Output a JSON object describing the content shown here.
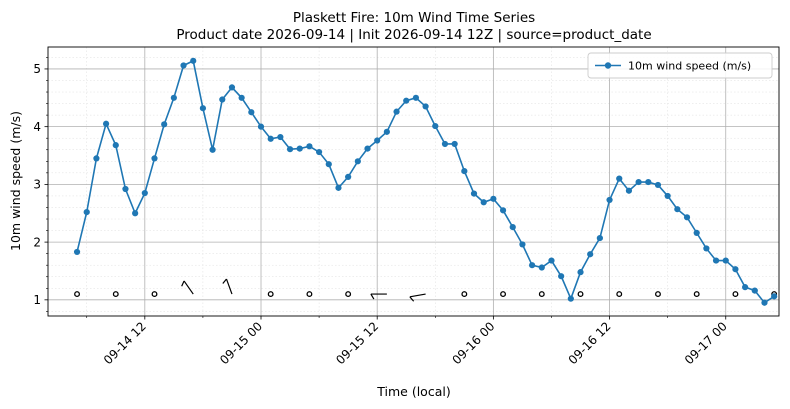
{
  "chart_data": {
    "type": "line",
    "title": "Plaskett Fire: 10m Wind Time Series",
    "subtitle": "Product date 2026-09-14 | Init 2026-09-14 12Z | source=product_date",
    "xlabel": "Time (local)",
    "ylabel": "10m wind speed (m/s)",
    "xlim": [
      "2026-09-14 02:00",
      "2026-09-17 05:30"
    ],
    "ylim": [
      0.72,
      5.38
    ],
    "x_ticks": [
      "09-14 12",
      "09-15 00",
      "09-15 12",
      "09-16 00",
      "09-16 12",
      "09-17 00"
    ],
    "y_ticks": [
      1,
      2,
      3,
      4,
      5
    ],
    "grid": true,
    "minor_grid": true,
    "legend": "top-right",
    "x_start": "2026-09-14 05:00",
    "x_step_hours": 1,
    "series": [
      {
        "name": "10m wind speed (m/s)",
        "color": "#1f77b4",
        "marker": "circle",
        "values": [
          1.83,
          2.52,
          3.45,
          4.05,
          3.68,
          2.92,
          2.5,
          2.85,
          3.45,
          4.04,
          4.5,
          5.06,
          5.14,
          4.32,
          3.6,
          4.47,
          4.68,
          4.5,
          4.25,
          4.0,
          3.79,
          3.82,
          3.61,
          3.62,
          3.66,
          3.56,
          3.35,
          2.94,
          3.13,
          3.4,
          3.62,
          3.76,
          3.91,
          4.26,
          4.45,
          4.5,
          4.35,
          4.01,
          3.7,
          3.7,
          3.23,
          2.84,
          2.69,
          2.75,
          2.55,
          2.26,
          1.96,
          1.6,
          1.56,
          1.68,
          1.41,
          1.02,
          1.48,
          1.79,
          2.07,
          2.73,
          3.1,
          2.89,
          3.04,
          3.04,
          2.99,
          2.8,
          2.57,
          2.43,
          2.16,
          1.89,
          1.68,
          1.68,
          1.53,
          1.22,
          1.16,
          0.95,
          1.06
        ]
      }
    ],
    "wind_barbs": {
      "y": 1.1,
      "color": "#000000",
      "times": [
        "2026-09-14 05:00",
        "2026-09-14 09:00",
        "2026-09-14 13:00",
        "2026-09-14 17:00",
        "2026-09-14 21:00",
        "2026-09-15 01:00",
        "2026-09-15 05:00",
        "2026-09-15 09:00",
        "2026-09-15 13:00",
        "2026-09-15 17:00",
        "2026-09-15 21:00",
        "2026-09-16 01:00",
        "2026-09-16 05:00",
        "2026-09-16 09:00",
        "2026-09-16 13:00",
        "2026-09-16 17:00",
        "2026-09-16 21:00",
        "2026-09-17 01:00",
        "2026-09-17 05:00"
      ],
      "kind": [
        "calm",
        "calm",
        "calm",
        "barb",
        "barb",
        "calm",
        "calm",
        "calm",
        "barb",
        "barb",
        "calm",
        "calm",
        "calm",
        "calm",
        "calm",
        "calm",
        "calm",
        "calm",
        "calm"
      ],
      "direction_deg": [
        0,
        0,
        0,
        325,
        340,
        0,
        0,
        0,
        270,
        260,
        0,
        0,
        0,
        0,
        0,
        0,
        0,
        0,
        0
      ]
    }
  }
}
